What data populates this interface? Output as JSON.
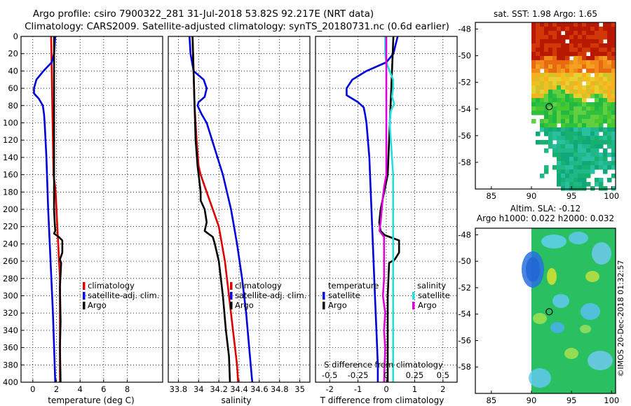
{
  "header": {
    "line1": "Argo profile: csiro 7900322_281 31-Jul-2018 53.82S 92.217E (NRT data)",
    "line2": "Climatology: CARS2009. Satellite-adjusted climatology: synTS_20180731.nc (0.6d earlier)"
  },
  "colors": {
    "climatology": "#dd0000",
    "satellite": "#0000dd",
    "argo": "#000000",
    "sal_satellite": "#22e0e0",
    "sal_argo": "#dd00dd"
  },
  "chart_data": [
    {
      "type": "line",
      "name": "temperature-profile",
      "xlabel": "temperature (deg C)",
      "ylabel": "",
      "xlim": [
        -1,
        11
      ],
      "ylim": [
        400,
        0
      ],
      "xticks": [
        0,
        2,
        4,
        6,
        8
      ],
      "xtick_labels": [
        "0",
        "2",
        "4",
        "6",
        "8"
      ],
      "yticks": [
        0,
        20,
        40,
        60,
        80,
        100,
        120,
        140,
        160,
        180,
        200,
        220,
        240,
        260,
        280,
        300,
        320,
        340,
        360,
        380,
        400
      ],
      "ytick_labels": [
        "0",
        "20",
        "40",
        "60",
        "80",
        "100",
        "120",
        "140",
        "160",
        "180",
        "200",
        "220",
        "240",
        "260",
        "280",
        "300",
        "320",
        "340",
        "360",
        "380",
        "400"
      ],
      "grid": true,
      "legend_position": "lower-right",
      "series": [
        {
          "name": "climatology",
          "color": "#dd0000",
          "depth": [
            0,
            40,
            80,
            120,
            160,
            175,
            185,
            200,
            240,
            280,
            320,
            360,
            400
          ],
          "values": [
            1.55,
            1.6,
            1.65,
            1.7,
            1.75,
            1.9,
            1.95,
            2.0,
            2.15,
            2.3,
            2.3,
            2.3,
            2.3
          ]
        },
        {
          "name": "satellite-adj. clim.",
          "color": "#0000dd",
          "depth": [
            0,
            20,
            30,
            40,
            50,
            60,
            66,
            72,
            80,
            90,
            100,
            140,
            200,
            260,
            320,
            400
          ],
          "values": [
            1.9,
            1.8,
            1.6,
            0.9,
            0.3,
            0.1,
            0.1,
            0.5,
            0.85,
            0.95,
            1.0,
            1.15,
            1.3,
            1.5,
            1.7,
            1.9
          ]
        },
        {
          "name": "Argo",
          "color": "#000000",
          "depth": [
            0,
            40,
            80,
            120,
            160,
            200,
            215,
            225,
            228,
            232,
            236,
            250,
            258,
            262,
            290,
            330,
            360,
            400
          ],
          "values": [
            1.8,
            1.8,
            1.8,
            1.8,
            1.8,
            1.8,
            1.85,
            1.9,
            1.8,
            2.2,
            2.5,
            2.5,
            2.3,
            2.4,
            2.3,
            2.35,
            2.3,
            2.35
          ]
        }
      ]
    },
    {
      "type": "line",
      "name": "salinity-profile",
      "xlabel": "salinity",
      "ylabel": "",
      "xlim": [
        33.7,
        35.1
      ],
      "ylim": [
        400,
        0
      ],
      "xticks": [
        33.8,
        34,
        34.2,
        34.4,
        34.6,
        34.8,
        35
      ],
      "xtick_labels": [
        "33.8",
        "34",
        "34.2",
        "34.4",
        "34.6",
        "34.8",
        "35"
      ],
      "grid": true,
      "legend_position": "lower-right",
      "series": [
        {
          "name": "climatology",
          "color": "#dd0000",
          "depth": [
            0,
            40,
            80,
            120,
            150,
            160,
            180,
            200,
            220,
            260,
            300,
            340,
            380,
            400
          ],
          "values": [
            33.94,
            33.95,
            33.96,
            33.98,
            34.0,
            34.02,
            34.08,
            34.14,
            34.2,
            34.26,
            34.3,
            34.34,
            34.38,
            34.39
          ]
        },
        {
          "name": "satellite-adj. clim.",
          "color": "#0000dd",
          "depth": [
            0,
            20,
            40,
            50,
            60,
            70,
            76,
            80,
            90,
            100,
            130,
            160,
            200,
            240,
            280,
            320,
            360,
            400
          ],
          "values": [
            33.91,
            33.92,
            33.95,
            34.05,
            34.08,
            34.06,
            34.0,
            33.99,
            34.03,
            34.08,
            34.16,
            34.24,
            34.32,
            34.38,
            34.43,
            34.47,
            34.5,
            34.53
          ]
        },
        {
          "name": "Argo",
          "color": "#000000",
          "depth": [
            0,
            40,
            80,
            120,
            150,
            160,
            180,
            190,
            200,
            215,
            225,
            232,
            240,
            260,
            300,
            340,
            370,
            400
          ],
          "values": [
            33.94,
            33.95,
            33.96,
            33.97,
            33.99,
            34.0,
            34.02,
            34.02,
            34.06,
            34.08,
            34.06,
            34.14,
            34.16,
            34.2,
            34.24,
            34.27,
            34.3,
            34.31
          ]
        }
      ]
    },
    {
      "type": "line",
      "name": "difference-profile",
      "xlabel": "T difference from climatology",
      "xlabel2": "S difference from climatology",
      "xlim": [
        -2.5,
        2.5
      ],
      "ylim": [
        400,
        0
      ],
      "xticks": [
        -2,
        -1,
        0,
        1,
        2
      ],
      "xtick_labels": [
        "-2",
        "-1",
        "0",
        "1",
        "2"
      ],
      "xticks2": [
        -0.5,
        -0.25,
        0,
        0.25,
        0.5
      ],
      "xtick_labels2": [
        "-0.5",
        "-0.25",
        "0",
        "0.25",
        "0.5"
      ],
      "s_scale": 4,
      "grid": true,
      "legend": {
        "temperature_title": "temperature",
        "salinity_title": "salinity"
      },
      "series": [
        {
          "name": "satellite",
          "group": "temperature",
          "color": "#0000dd",
          "depth": [
            0,
            20,
            30,
            40,
            50,
            60,
            68,
            76,
            82,
            90,
            100,
            140,
            180,
            220,
            260,
            300,
            340,
            380,
            400
          ],
          "values": [
            0.4,
            0.25,
            0.0,
            -0.7,
            -1.2,
            -1.4,
            -1.4,
            -1.0,
            -0.8,
            -0.75,
            -0.7,
            -0.6,
            -0.55,
            -0.5,
            -0.45,
            -0.4,
            -0.35,
            -0.3,
            -0.3
          ]
        },
        {
          "name": "Argo",
          "group": "temperature",
          "color": "#000000",
          "depth": [
            0,
            40,
            80,
            120,
            160,
            200,
            215,
            225,
            230,
            236,
            250,
            258,
            262,
            300,
            340,
            400
          ],
          "values": [
            0.25,
            0.2,
            0.15,
            0.1,
            0.05,
            -0.2,
            -0.25,
            -0.2,
            -0.05,
            0.45,
            0.45,
            0.3,
            0.1,
            0.05,
            0.05,
            0.05
          ]
        },
        {
          "name": "satellite",
          "group": "salinity",
          "color": "#22e0e0",
          "depth": [
            0,
            20,
            30,
            40,
            50,
            60,
            70,
            78,
            86,
            100,
            140,
            160,
            200,
            260,
            320,
            400
          ],
          "values": [
            -0.01,
            -0.01,
            0.0,
            0.03,
            0.06,
            0.06,
            0.05,
            0.07,
            0.04,
            0.03,
            0.05,
            0.06,
            0.06,
            0.06,
            0.06,
            0.06
          ]
        },
        {
          "name": "Argo",
          "group": "salinity",
          "color": "#dd00dd",
          "depth": [
            0,
            40,
            80,
            120,
            160,
            175,
            185,
            200,
            215,
            225,
            232,
            240,
            260,
            280,
            300,
            320,
            340,
            360,
            400
          ],
          "values": [
            0.0,
            0.0,
            0.0,
            0.0,
            0.0,
            -0.02,
            -0.03,
            -0.04,
            -0.05,
            -0.06,
            -0.02,
            -0.02,
            -0.02,
            -0.02,
            -0.03,
            -0.01,
            -0.02,
            -0.01,
            -0.02
          ]
        }
      ]
    },
    {
      "type": "heatmap",
      "name": "sst-map",
      "title": "sat. SST: 1.98 Argo: 1.65",
      "xlim": [
        83,
        100.5
      ],
      "ylim": [
        -60,
        -47.5
      ],
      "xticks": [
        85,
        90,
        95,
        100
      ],
      "xtick_labels": [
        "85",
        "90",
        "95",
        "100"
      ],
      "yticks": [
        -48,
        -50,
        -52,
        -54,
        -56,
        -58
      ],
      "ytick_labels": [
        "-48",
        "-50",
        "-52",
        "-54",
        "-56",
        "-58"
      ],
      "marker": {
        "lon": 92.217,
        "lat": -53.82
      }
    },
    {
      "type": "heatmap",
      "name": "sla-map",
      "title1": "Altim. SLA: -0.12",
      "title2": "Argo h1000: 0.022 h2000: 0.032",
      "xlim": [
        83,
        100.5
      ],
      "ylim": [
        -60,
        -47.5
      ],
      "xticks": [
        85,
        90,
        95,
        100
      ],
      "xtick_labels": [
        "85",
        "90",
        "95",
        "100"
      ],
      "yticks": [
        -48,
        -50,
        -52,
        -54,
        -56,
        -58
      ],
      "ytick_labels": [
        "-48",
        "-50",
        "-52",
        "-54",
        "-56",
        "-58"
      ],
      "marker": {
        "lon": 92.217,
        "lat": -53.82
      }
    }
  ],
  "watermark": "©IMOS 20-Dec-2018 01:32:57"
}
